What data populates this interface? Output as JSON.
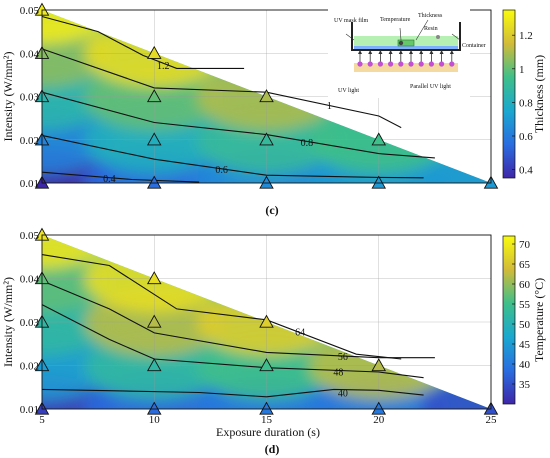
{
  "chart_data": [
    {
      "type": "contour",
      "panel_label": "(c)",
      "title": "",
      "xlabel": "",
      "ylabel": "Intensity (W/mm²)",
      "x_ticks": [],
      "y_ticks": [
        "0.01",
        "0.02",
        "0.03",
        "0.04",
        "0.05"
      ],
      "xlim": [
        5,
        25
      ],
      "ylim": [
        0.01,
        0.05
      ],
      "colorbar": {
        "label": "Thickness (mm)",
        "min": 0.35,
        "max": 1.35,
        "ticks": [
          "0.4",
          "0.6",
          "0.8",
          "1",
          "1.2"
        ]
      },
      "contour_labels": [
        "0.4",
        "0.6",
        "0.8",
        "1",
        "1.2"
      ],
      "sample_points": [
        {
          "x": 5,
          "y": 0.01,
          "value": 0.35
        },
        {
          "x": 5,
          "y": 0.02,
          "value": 0.62
        },
        {
          "x": 5,
          "y": 0.03,
          "value": 0.85
        },
        {
          "x": 5,
          "y": 0.04,
          "value": 1.05
        },
        {
          "x": 5,
          "y": 0.05,
          "value": 1.3
        },
        {
          "x": 10,
          "y": 0.01,
          "value": 0.55
        },
        {
          "x": 10,
          "y": 0.02,
          "value": 0.8
        },
        {
          "x": 10,
          "y": 0.03,
          "value": 1.0
        },
        {
          "x": 10,
          "y": 0.04,
          "value": 1.25
        },
        {
          "x": 15,
          "y": 0.01,
          "value": 0.65
        },
        {
          "x": 15,
          "y": 0.02,
          "value": 0.9
        },
        {
          "x": 15,
          "y": 0.03,
          "value": 1.1
        },
        {
          "x": 20,
          "y": 0.01,
          "value": 0.7
        },
        {
          "x": 20,
          "y": 0.02,
          "value": 0.95
        },
        {
          "x": 25,
          "y": 0.01,
          "value": 0.7
        }
      ],
      "inset": {
        "labels": [
          "UV mask film",
          "Temperature",
          "Thickness",
          "Resin",
          "Container",
          "UV light",
          "Parallel UV light"
        ]
      }
    },
    {
      "type": "contour",
      "panel_label": "(d)",
      "title": "",
      "xlabel": "Exposure duration (s)",
      "ylabel": "Intensity (W/mm²)",
      "x_ticks": [
        "5",
        "10",
        "15",
        "20",
        "25"
      ],
      "y_ticks": [
        "0.01",
        "0.02",
        "0.03",
        "0.04",
        "0.05"
      ],
      "xlim": [
        5,
        25
      ],
      "ylim": [
        0.01,
        0.05
      ],
      "colorbar": {
        "label": "Temperature (°C)",
        "min": 30,
        "max": 72,
        "ticks": [
          "35",
          "40",
          "45",
          "50",
          "55",
          "60",
          "65",
          "70"
        ]
      },
      "contour_labels": [
        "40",
        "48",
        "56",
        "64"
      ],
      "sample_points": [
        {
          "x": 5,
          "y": 0.01,
          "value": 33
        },
        {
          "x": 5,
          "y": 0.02,
          "value": 45
        },
        {
          "x": 5,
          "y": 0.03,
          "value": 52
        },
        {
          "x": 5,
          "y": 0.04,
          "value": 57
        },
        {
          "x": 5,
          "y": 0.05,
          "value": 69
        },
        {
          "x": 10,
          "y": 0.01,
          "value": 38
        },
        {
          "x": 10,
          "y": 0.02,
          "value": 52
        },
        {
          "x": 10,
          "y": 0.03,
          "value": 62
        },
        {
          "x": 10,
          "y": 0.04,
          "value": 68
        },
        {
          "x": 15,
          "y": 0.01,
          "value": 40
        },
        {
          "x": 15,
          "y": 0.02,
          "value": 55
        },
        {
          "x": 15,
          "y": 0.03,
          "value": 66
        },
        {
          "x": 20,
          "y": 0.01,
          "value": 40
        },
        {
          "x": 20,
          "y": 0.02,
          "value": 62
        },
        {
          "x": 25,
          "y": 0.01,
          "value": 35
        }
      ]
    }
  ]
}
